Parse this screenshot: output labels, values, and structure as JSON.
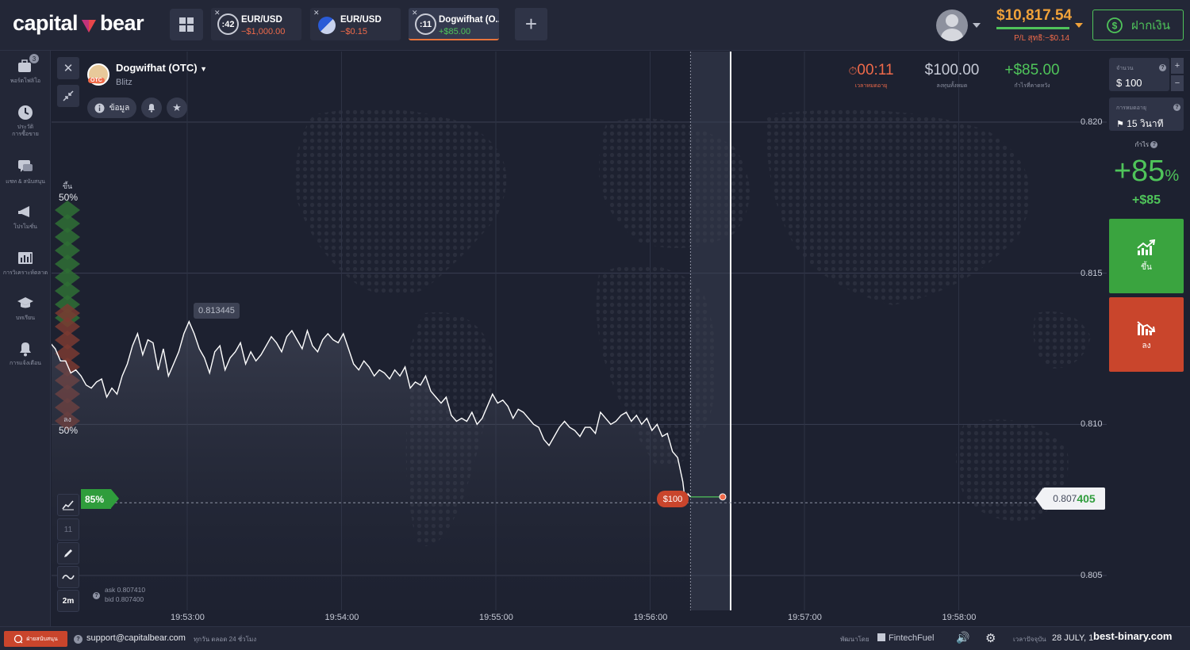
{
  "brand": {
    "left": "capital",
    "right": "bear"
  },
  "tabs": [
    {
      "timer": ":42",
      "name": "EUR/USD",
      "value": "−$1,000.00",
      "state": "neg"
    },
    {
      "timer": "",
      "name": "EUR/USD",
      "value": "−$0.15",
      "state": "neg"
    },
    {
      "timer": ":11",
      "name": "Dogwifhat (O...",
      "value": "+$85.00",
      "state": "pos"
    }
  ],
  "account": {
    "balance": "$10,817.54",
    "pl": "P/L สุทธิ:−$0.14",
    "deposit_label": "ฝากเงิน"
  },
  "sidebar": [
    {
      "label": "พอร์ตโฟลิโอ",
      "badge": "3"
    },
    {
      "label": "ประวัติ\nการซื้อขาย"
    },
    {
      "label": "แชท & สนับสนุน"
    },
    {
      "label": "โปรโมชั่น"
    },
    {
      "label": "การวิเคราะห์ตลาด"
    },
    {
      "label": "บทเรียน"
    },
    {
      "label": "การแจ้งเตือน"
    }
  ],
  "asset": {
    "name": "Dogwifhat (OTC)",
    "sub": "Blitz",
    "otc_badge": "OTC",
    "info_label": "ข้อมูล"
  },
  "stats": {
    "timer": "00:11",
    "timer_label": "เวลาหมดอายุ",
    "investment": "$100.00",
    "investment_label": "ลงทุนทั้งหมด",
    "expected": "+$85.00",
    "expected_label": "กำไรที่คาดหวัง"
  },
  "sentiment": {
    "up_label": "ขึ้น",
    "up_pct": "50%",
    "down_label": "ลง",
    "down_pct": "50%"
  },
  "chart_tools": {
    "interval": "2m",
    "tool_11": "11"
  },
  "quote": {
    "ask": "ask 0.807410",
    "bid": "bid 0.807400",
    "current_prefix": "0.807",
    "current_suffix": "405",
    "tooltip": "0.813445"
  },
  "trade": {
    "payout_tag": "85%",
    "amount_tag": "$100"
  },
  "chart_data": {
    "type": "line",
    "x_ticks": [
      "19:53:00",
      "19:54:00",
      "19:55:00",
      "19:56:00",
      "19:57:00",
      "19:58:00"
    ],
    "y_ticks": [
      "0.820",
      "0.815",
      "0.810",
      "0.805"
    ],
    "ylim": [
      0.8039,
      0.8218
    ],
    "xlim_seconds_from_1953": [
      -41,
      240
    ],
    "series": [
      {
        "values": [
          [
            -40,
            0.8149
          ],
          [
            -38,
            0.8151
          ],
          [
            -36,
            0.8148
          ],
          [
            -34,
            0.8147
          ],
          [
            -32,
            0.8145
          ],
          [
            -30,
            0.8142
          ],
          [
            -28,
            0.8138
          ],
          [
            -26,
            0.8136
          ],
          [
            -24,
            0.8133
          ],
          [
            -22,
            0.8128
          ],
          [
            -20,
            0.8131
          ],
          [
            -18,
            0.8134
          ],
          [
            -16,
            0.8136
          ],
          [
            -14,
            0.8128
          ],
          [
            -12,
            0.8122
          ],
          [
            -10,
            0.8117
          ],
          [
            -8,
            0.812
          ],
          [
            -6,
            0.8114
          ],
          [
            -4,
            0.8118
          ],
          [
            -2,
            0.8111
          ],
          [
            0,
            0.8109
          ],
          [
            2,
            0.8114
          ],
          [
            4,
            0.8121
          ],
          [
            6,
            0.8128
          ],
          [
            8,
            0.8126
          ],
          [
            10,
            0.8131
          ],
          [
            12,
            0.8127
          ],
          [
            14,
            0.8132
          ],
          [
            16,
            0.813
          ],
          [
            18,
            0.8128
          ],
          [
            20,
            0.8127
          ],
          [
            22,
            0.8131
          ],
          [
            24,
            0.8129
          ],
          [
            26,
            0.8134
          ],
          [
            28,
            0.8133
          ],
          [
            30,
            0.8127
          ],
          [
            32,
            0.8125
          ],
          [
            34,
            0.8121
          ],
          [
            36,
            0.8121
          ],
          [
            38,
            0.8117
          ],
          [
            40,
            0.8118
          ],
          [
            42,
            0.8116
          ],
          [
            44,
            0.8113
          ],
          [
            46,
            0.8112
          ],
          [
            48,
            0.8114
          ],
          [
            50,
            0.8115
          ],
          [
            52,
            0.8109
          ],
          [
            54,
            0.8112
          ],
          [
            56,
            0.811
          ],
          [
            58,
            0.8116
          ],
          [
            60,
            0.812
          ],
          [
            62,
            0.8126
          ],
          [
            64,
            0.813
          ],
          [
            66,
            0.8123
          ],
          [
            68,
            0.8128
          ],
          [
            70,
            0.8127
          ],
          [
            72,
            0.8118
          ],
          [
            74,
            0.8125
          ],
          [
            76,
            0.8116
          ],
          [
            78,
            0.812
          ],
          [
            80,
            0.8124
          ],
          [
            82,
            0.813
          ],
          [
            84,
            0.8134
          ],
          [
            86,
            0.813
          ],
          [
            88,
            0.8125
          ],
          [
            90,
            0.8122
          ],
          [
            92,
            0.8117
          ],
          [
            94,
            0.8124
          ],
          [
            96,
            0.8126
          ],
          [
            98,
            0.8118
          ],
          [
            100,
            0.8122
          ],
          [
            102,
            0.8124
          ],
          [
            104,
            0.8127
          ],
          [
            106,
            0.812
          ],
          [
            108,
            0.8124
          ],
          [
            110,
            0.8121
          ],
          [
            112,
            0.8123
          ],
          [
            114,
            0.8126
          ],
          [
            116,
            0.8129
          ],
          [
            118,
            0.8127
          ],
          [
            120,
            0.8124
          ],
          [
            122,
            0.8129
          ],
          [
            124,
            0.8131
          ],
          [
            126,
            0.8128
          ],
          [
            128,
            0.8125
          ],
          [
            130,
            0.8131
          ],
          [
            132,
            0.8126
          ],
          [
            134,
            0.8124
          ],
          [
            136,
            0.8128
          ],
          [
            138,
            0.813
          ],
          [
            140,
            0.8128
          ],
          [
            142,
            0.8127
          ],
          [
            144,
            0.813
          ],
          [
            146,
            0.8125
          ],
          [
            148,
            0.812
          ],
          [
            150,
            0.8118
          ],
          [
            152,
            0.8121
          ],
          [
            154,
            0.8119
          ],
          [
            156,
            0.8116
          ],
          [
            158,
            0.8118
          ],
          [
            160,
            0.8117
          ],
          [
            162,
            0.8115
          ],
          [
            164,
            0.8118
          ],
          [
            166,
            0.8116
          ],
          [
            168,
            0.8119
          ],
          [
            170,
            0.8112
          ],
          [
            172,
            0.8114
          ],
          [
            174,
            0.8113
          ],
          [
            176,
            0.8116
          ],
          [
            178,
            0.8111
          ],
          [
            180,
            0.8109
          ],
          [
            182,
            0.8107
          ],
          [
            184,
            0.8109
          ],
          [
            186,
            0.8103
          ],
          [
            188,
            0.8101
          ],
          [
            190,
            0.8102
          ],
          [
            192,
            0.8101
          ],
          [
            194,
            0.8104
          ],
          [
            196,
            0.81
          ],
          [
            198,
            0.8102
          ],
          [
            200,
            0.8106
          ],
          [
            202,
            0.811
          ],
          [
            204,
            0.8107
          ],
          [
            206,
            0.8108
          ],
          [
            208,
            0.8106
          ],
          [
            210,
            0.8102
          ],
          [
            212,
            0.8105
          ],
          [
            214,
            0.8104
          ],
          [
            216,
            0.8102
          ],
          [
            218,
            0.81
          ],
          [
            220,
            0.8099
          ],
          [
            222,
            0.8095
          ],
          [
            224,
            0.8093
          ],
          [
            226,
            0.8096
          ],
          [
            228,
            0.8099
          ],
          [
            230,
            0.8101
          ],
          [
            232,
            0.8099
          ],
          [
            234,
            0.8098
          ],
          [
            236,
            0.8096
          ],
          [
            238,
            0.8099
          ],
          [
            240,
            0.8099
          ],
          [
            242,
            0.8097
          ],
          [
            244,
            0.8104
          ],
          [
            246,
            0.8102
          ],
          [
            248,
            0.81
          ],
          [
            250,
            0.8101
          ],
          [
            252,
            0.8103
          ],
          [
            254,
            0.8104
          ],
          [
            256,
            0.8101
          ],
          [
            258,
            0.8103
          ],
          [
            260,
            0.81
          ],
          [
            262,
            0.8102
          ],
          [
            264,
            0.8098
          ],
          [
            266,
            0.81
          ],
          [
            268,
            0.8096
          ],
          [
            270,
            0.8097
          ],
          [
            272,
            0.8091
          ],
          [
            274,
            0.8089
          ],
          [
            276,
            0.8081
          ],
          [
            277,
            0.8074
          ],
          [
            278,
            0.8077
          ],
          [
            279,
            0.8076
          ]
        ]
      }
    ]
  },
  "right_panel": {
    "amount_title": "จำนวน",
    "amount_value": "$  100",
    "expiry_title": "การหมดอายุ",
    "expiry_value": "15 วินาที",
    "profit_title": "กำไร",
    "profit_pct": "+85",
    "profit_pct_sign": "%",
    "profit_amount": "+$85",
    "call_label": "ขึ้น",
    "put_label": "ลง",
    "plus": "+",
    "minus": "−"
  },
  "footer": {
    "support_label": "ฝ่ายสนับสนุน",
    "email": "support@capitalbear.com",
    "hours": "ทุกวัน ตลอด 24 ชั่วโมง",
    "powered": "พัฒนาโดย",
    "fintech": "FintechFuel",
    "time_label": "เวลาปัจจุบัน",
    "date": "28 JULY, 1",
    "watermark": "best-binary.com"
  },
  "colors": {
    "up": "#3aa43f",
    "down": "#c9452c",
    "accent": "#f0a23a"
  }
}
